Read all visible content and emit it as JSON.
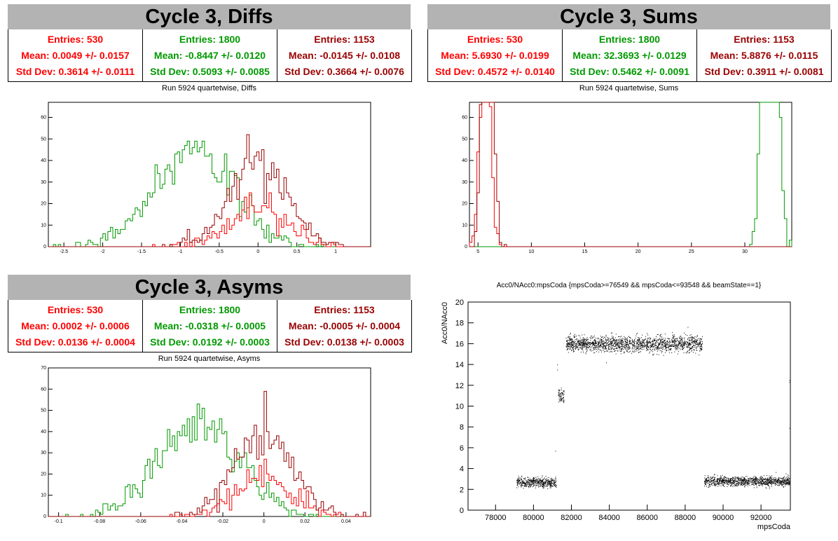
{
  "panels": {
    "diffs": {
      "title": "Cycle 3, Diffs",
      "plot_title": "Run 5924 quartetwise, Diffs",
      "stats": [
        {
          "entries": "Entries: 530",
          "mean": "Mean: 0.0049 +/- 0.0157",
          "std": "Std Dev: 0.3614 +/- 0.0111",
          "color": "#ff0000"
        },
        {
          "entries": "Entries: 1800",
          "mean": "Mean: -0.8447 +/- 0.0120",
          "std": "Std Dev: 0.5093 +/- 0.0085",
          "color": "#009900"
        },
        {
          "entries": "Entries: 1153",
          "mean": "Mean: -0.0145 +/- 0.0108",
          "std": "Std Dev: 0.3664 +/- 0.0076",
          "color": "#990000"
        }
      ]
    },
    "sums": {
      "title": "Cycle 3, Sums",
      "plot_title": "Run 5924 quartetwise, Sums",
      "stats": [
        {
          "entries": "Entries: 530",
          "mean": "Mean: 5.6930 +/- 0.0199",
          "std": "Std Dev: 0.4572 +/- 0.0140",
          "color": "#ff0000"
        },
        {
          "entries": "Entries: 1800",
          "mean": "Mean: 32.3693 +/- 0.0129",
          "std": "Std Dev: 0.5462 +/- 0.0091",
          "color": "#009900"
        },
        {
          "entries": "Entries: 1153",
          "mean": "Mean: 5.8876 +/- 0.0115",
          "std": "Std Dev: 0.3911 +/- 0.0081",
          "color": "#990000"
        }
      ]
    },
    "asyms": {
      "title": "Cycle 3, Asyms",
      "plot_title": "Run 5924 quartetwise, Asyms",
      "stats": [
        {
          "entries": "Entries: 530",
          "mean": "Mean: 0.0002 +/- 0.0006",
          "std": "Std Dev: 0.0136 +/- 0.0004",
          "color": "#ff0000"
        },
        {
          "entries": "Entries: 1800",
          "mean": "Mean: -0.0318 +/- 0.0005",
          "std": "Std Dev: 0.0192 +/- 0.0003",
          "color": "#009900"
        },
        {
          "entries": "Entries: 1153",
          "mean": "Mean: -0.0005 +/- 0.0004",
          "std": "Std Dev: 0.0138 +/- 0.0003",
          "color": "#990000"
        }
      ]
    },
    "scatter": {
      "plot_title": "Acc0/NAcc0:mpsCoda {mpsCoda>=76549 && mpsCoda<=93548 && beamState==1}"
    }
  },
  "chart_data": [
    {
      "type": "histogram",
      "title": "Run 5924 quartetwise, Diffs",
      "xlim": [
        -2.7,
        1.45
      ],
      "ylim": [
        0,
        67
      ],
      "xticks": [
        "-2.5",
        "-2",
        "-1.5",
        "-1",
        "-0.5",
        "0",
        "0.5",
        "1"
      ],
      "yticks": [
        "0",
        "10",
        "20",
        "30",
        "40",
        "50",
        "60"
      ],
      "series": [
        {
          "color": "#009900",
          "entries": 1800,
          "mean": -0.8447,
          "std": 0.5093
        },
        {
          "color": "#ff0000",
          "entries": 530,
          "mean": 0.0049,
          "std": 0.3614
        },
        {
          "color": "#990000",
          "entries": 1153,
          "mean": -0.0145,
          "std": 0.3664
        }
      ]
    },
    {
      "type": "histogram",
      "title": "Run 5924 quartetwise, Sums",
      "xlim": [
        4.2,
        34.4
      ],
      "ylim": [
        0,
        67
      ],
      "xticks": [
        "5",
        "10",
        "15",
        "20",
        "25",
        "30"
      ],
      "yticks": [
        "0",
        "10",
        "20",
        "30",
        "40",
        "50",
        "60"
      ],
      "series": [
        {
          "color": "#009900",
          "entries": 1800,
          "mean": 32.3693,
          "std": 0.5462
        },
        {
          "color": "#ff0000",
          "entries": 530,
          "mean": 5.693,
          "std": 0.4572
        },
        {
          "color": "#990000",
          "entries": 1153,
          "mean": 5.8876,
          "std": 0.3911
        }
      ]
    },
    {
      "type": "histogram",
      "title": "Run 5924 quartetwise, Asyms",
      "xlim": [
        -0.105,
        0.052
      ],
      "ylim": [
        0,
        70
      ],
      "xticks": [
        "-0.1",
        "-0.08",
        "-0.06",
        "-0.04",
        "-0.02",
        "0",
        "0.02",
        "0.04"
      ],
      "yticks": [
        "0",
        "10",
        "20",
        "30",
        "40",
        "50",
        "60",
        "70"
      ],
      "series": [
        {
          "color": "#009900",
          "entries": 1800,
          "mean": -0.0318,
          "std": 0.0192
        },
        {
          "color": "#ff0000",
          "entries": 530,
          "mean": 0.0002,
          "std": 0.0136
        },
        {
          "color": "#990000",
          "entries": 1153,
          "mean": -0.0005,
          "std": 0.0138
        }
      ]
    },
    {
      "type": "scatter",
      "title": "Acc0/NAcc0:mpsCoda {mpsCoda>=76549 && mpsCoda<=93548 && beamState==1}",
      "xlabel": "mpsCoda",
      "ylabel": "Acc0/NAcc0",
      "xlim": [
        76549,
        93548
      ],
      "ylim": [
        0,
        20
      ],
      "xticks": [
        "78000",
        "80000",
        "82000",
        "84000",
        "86000",
        "88000",
        "90000",
        "92000",
        "94000"
      ],
      "yticks": [
        "0",
        "2",
        "4",
        "6",
        "8",
        "10",
        "12",
        "14",
        "16",
        "18",
        "20"
      ],
      "clusters": [
        {
          "x": [
            79100,
            81200
          ],
          "y_center": 2.7,
          "y_spread": 0.45
        },
        {
          "x": [
            81300,
            81600
          ],
          "y_center": 11.0,
          "y_spread": 0.6
        },
        {
          "x": [
            81700,
            88900
          ],
          "y_center": 16.0,
          "y_spread": 0.75
        },
        {
          "x": [
            89000,
            93500
          ],
          "y_center": 2.8,
          "y_spread": 0.45
        }
      ]
    }
  ]
}
